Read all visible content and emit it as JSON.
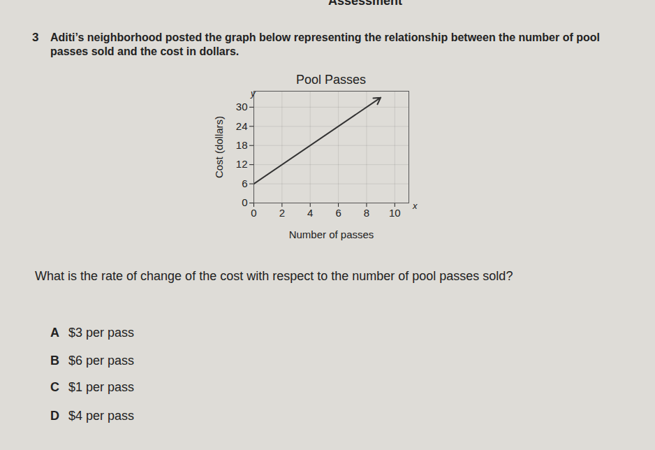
{
  "header": "Assessment",
  "problem_number": "3",
  "intro": "Aditi’s neighborhood posted the graph below representing the relationship between the number of pool passes sold and the cost in dollars.",
  "chart_data": {
    "type": "line",
    "title": "Pool Passes",
    "x_label": "Number of passes",
    "y_label": "Cost (dollars)",
    "x_axis_letter": "x",
    "y_axis_letter": "y",
    "x": [
      0,
      9
    ],
    "values": [
      6,
      33
    ],
    "xlim": [
      0,
      11
    ],
    "ylim": [
      0,
      35
    ],
    "xticks": [
      0,
      2,
      4,
      6,
      8,
      10
    ],
    "yticks": [
      0,
      6,
      12,
      18,
      24,
      30
    ],
    "grid": true,
    "marker": "arrow",
    "color": "#333333"
  },
  "question": "What is the rate of change of the cost with respect to the number of pool passes sold?",
  "choices": [
    {
      "letter": "A",
      "text": "$3 per pass"
    },
    {
      "letter": "B",
      "text": "$6 per pass"
    },
    {
      "letter": "C",
      "text": "$1 per pass"
    },
    {
      "letter": "D",
      "text": "$4 per pass"
    }
  ]
}
